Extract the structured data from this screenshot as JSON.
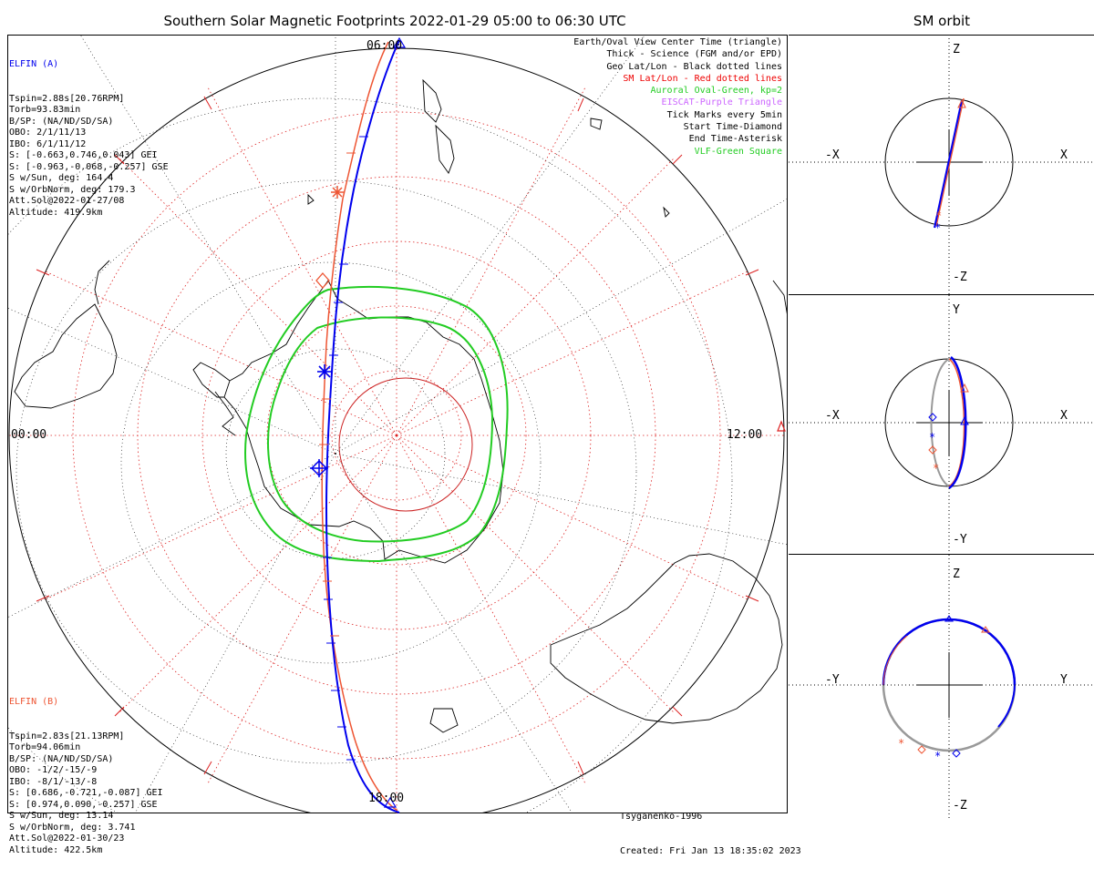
{
  "header": {
    "title": "Southern Solar Magnetic Footprints 2022-01-29 05:00 to 06:30 UTC",
    "orbit_title": "SM orbit"
  },
  "map": {
    "top_label": "06:00",
    "left_label": "00:00",
    "right_label": "12:00",
    "bottom_label": "18:00",
    "colors": {
      "elfin_a": "#0000ee",
      "elfin_b": "#ee5533",
      "oval": "#22cc22",
      "sm_grid": "#dd2222",
      "geo_grid": "#000000"
    }
  },
  "elfin_a": {
    "name": "ELFIN (A)",
    "lines": [
      "Tspin=2.88s[20.76RPM]",
      "Torb=93.83min",
      "B/SP: (NA/ND/SD/SA)",
      "OBO: 2/1/11/13",
      "IBO: 6/1/11/12",
      "S: [-0.663,0.746,0.043] GEI",
      "S: [-0.963,-0.068,-0.257] GSE",
      "S w/Sun, deg: 164.4",
      "S w/OrbNorm, deg: 179.3",
      "Att.Sol@2022-01-27/08",
      "Altitude: 419.9km"
    ]
  },
  "elfin_b": {
    "name": "ELFIN (B)",
    "lines": [
      "Tspin=2.83s[21.13RPM]",
      "Torb=94.06min",
      "B/SP: (NA/ND/SD/SA)",
      "OBO: -1/2/-15/-9",
      "IBO: -8/1/-13/-8",
      "S: [0.686,-0.721,-0.087] GEI",
      "S: [0.974,0.090,-0.257] GSE",
      "S w/Sun, deg: 13.14",
      "S w/OrbNorm, deg: 3.741",
      "Att.Sol@2022-01-30/23",
      "Altitude: 422.5km"
    ]
  },
  "legend": [
    {
      "text": "Earth/Oval View Center Time (triangle)",
      "color": "#000000"
    },
    {
      "text": "Thick - Science (FGM and/or EPD)",
      "color": "#000000"
    },
    {
      "text": "Geo Lat/Lon - Black dotted lines",
      "color": "#000000"
    },
    {
      "text": "SM Lat/Lon - Red dotted lines",
      "color": "#ee0000"
    },
    {
      "text": "Auroral Oval-Green, kp=2",
      "color": "#22cc22"
    },
    {
      "text": "EISCAT-Purple Triangle",
      "color": "#cc66ff"
    },
    {
      "text": "Tick Marks every 5min",
      "color": "#000000"
    },
    {
      "text": "Start Time-Diamond",
      "color": "#000000"
    },
    {
      "text": "End Time-Asterisk",
      "color": "#000000"
    },
    {
      "text": "VLF-Green Square",
      "color": "#22cc22"
    }
  ],
  "footer": {
    "model": "Tsyganenko-1996",
    "created": "Created: Fri Jan 13 18:35:02 2023"
  },
  "orbit_panels": [
    {
      "top": "Z",
      "bottom": "-Z",
      "left": "-X",
      "right": "X"
    },
    {
      "top": "Y",
      "bottom": "-Y",
      "left": "-X",
      "right": "X"
    },
    {
      "top": "Z",
      "bottom": "-Z",
      "left": "-Y",
      "right": "Y"
    }
  ]
}
